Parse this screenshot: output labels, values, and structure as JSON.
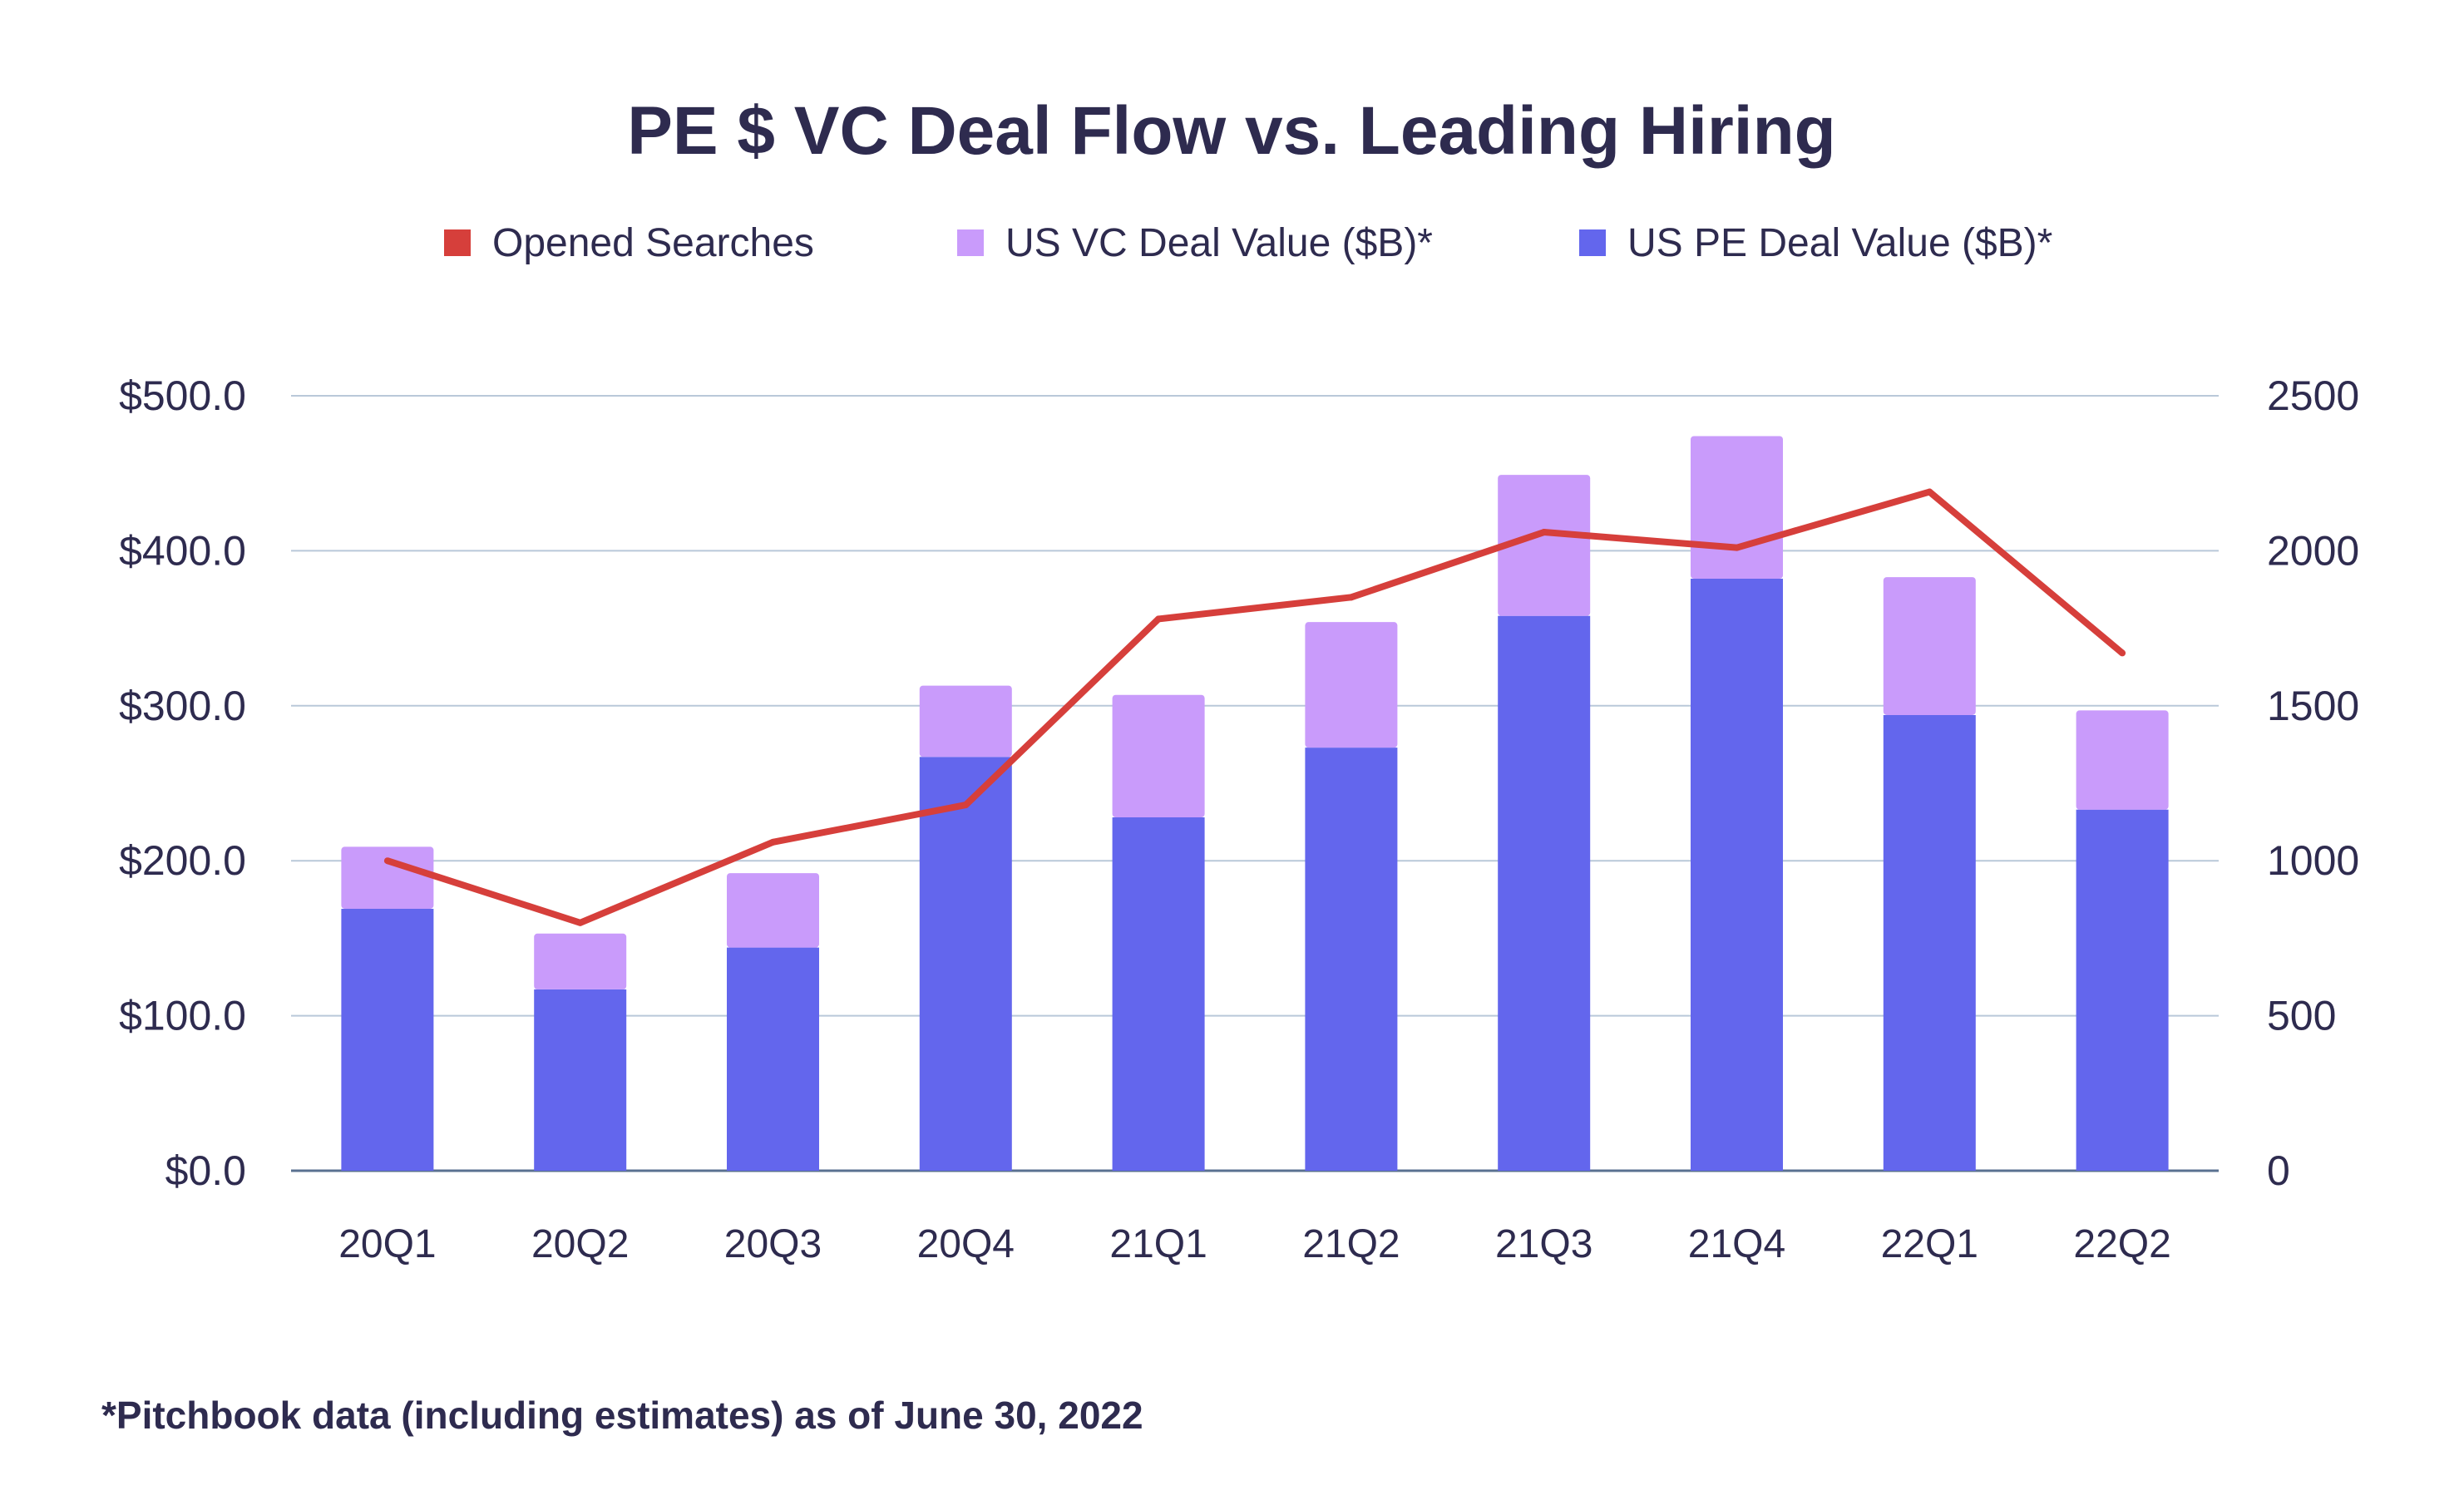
{
  "chart_data": {
    "type": "bar",
    "title": "PE $ VC Deal Flow vs. Leading Hiring",
    "footnote": "*Pitchbook data (including estimates) as of June 30, 2022",
    "categories": [
      "20Q1",
      "20Q2",
      "20Q3",
      "20Q4",
      "21Q1",
      "21Q2",
      "21Q3",
      "21Q4",
      "22Q1",
      "22Q2"
    ],
    "stacked": true,
    "series": [
      {
        "name": "US PE Deal Value ($B)*",
        "type": "bar",
        "axis": "left",
        "color": "#6366ed",
        "values": [
          169,
          117,
          144,
          267,
          228,
          273,
          358,
          382,
          294,
          233
        ]
      },
      {
        "name": "US VC Deal Value ($B)*",
        "type": "bar",
        "axis": "left",
        "color": "#c99bfb",
        "values": [
          40,
          36,
          48,
          46,
          79,
          81,
          91,
          92,
          89,
          64
        ]
      },
      {
        "name": "Opened Searches",
        "type": "line",
        "axis": "right",
        "color": "#d63f3b",
        "values": [
          1000,
          800,
          1060,
          1180,
          1780,
          1850,
          2060,
          2010,
          2190,
          1670
        ]
      }
    ],
    "legend_order": [
      "Opened Searches",
      "US VC Deal Value ($B)*",
      "US PE Deal Value ($B)*"
    ],
    "legend_position": "top",
    "y_left": {
      "min": 0,
      "max": 500,
      "ticks": [
        "$0.0",
        "$100.0",
        "$200.0",
        "$300.0",
        "$400.0",
        "$500.0"
      ]
    },
    "y_right": {
      "min": 0,
      "max": 2500,
      "ticks": [
        "0",
        "500",
        "1000",
        "1500",
        "2000",
        "2500"
      ]
    },
    "grid": true,
    "colors": {
      "text": "#2e2b4f",
      "grid": "#b9c8d9",
      "axis": "#5a7190"
    }
  }
}
